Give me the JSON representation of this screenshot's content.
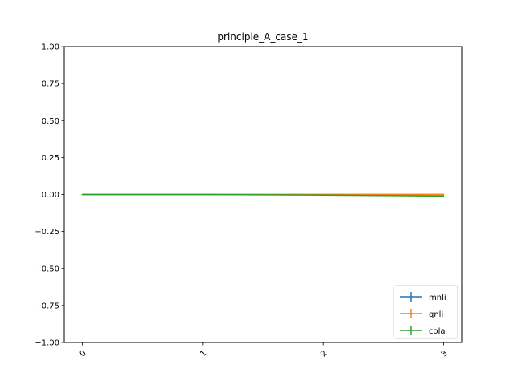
{
  "chart_data": {
    "type": "line",
    "title": "principle_A_case_1",
    "xlabel": "",
    "ylabel": "",
    "x": [
      0,
      1,
      2,
      3
    ],
    "x_tick_labels": [
      "0",
      "1",
      "2",
      "3"
    ],
    "xlim": [
      -0.15,
      3.15
    ],
    "ylim": [
      -1.0,
      1.0
    ],
    "y_ticks": [
      1.0,
      0.75,
      0.5,
      0.25,
      0.0,
      -0.25,
      -0.5,
      -0.75,
      -1.0
    ],
    "y_tick_labels": [
      "1.00",
      "0.75",
      "0.50",
      "0.25",
      "0.00",
      "−0.25",
      "−0.50",
      "−0.75",
      "−1.00"
    ],
    "grid": false,
    "legend_position": "lower-right",
    "series": [
      {
        "name": "mnli",
        "color": "#1f77b4",
        "values": [
          0.0,
          0.0,
          0.0,
          0.0
        ]
      },
      {
        "name": "qnli",
        "color": "#ff7f0e",
        "values": [
          0.0,
          0.0,
          0.0,
          0.0
        ]
      },
      {
        "name": "cola",
        "color": "#2ca02c",
        "values": [
          0.0,
          0.0,
          -0.004,
          -0.01
        ]
      }
    ]
  }
}
